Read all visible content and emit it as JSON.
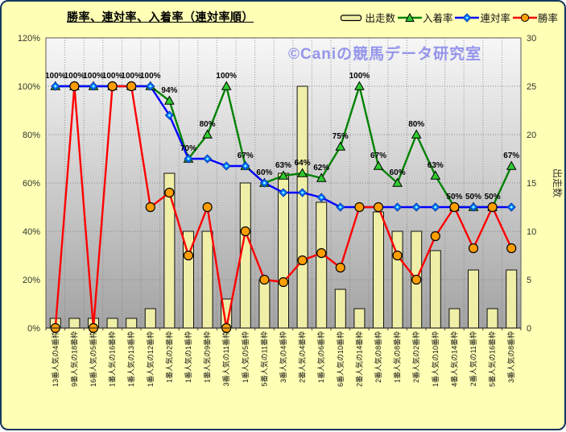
{
  "title": "勝率、連対率、入着率（連対率順）",
  "watermark": "©Caniの競馬データ研究室",
  "legend": [
    {
      "label": "出走数",
      "marker": "bar"
    },
    {
      "label": "入着率",
      "marker": "triangle"
    },
    {
      "label": "連対率",
      "marker": "diamond"
    },
    {
      "label": "勝率",
      "marker": "circle"
    }
  ],
  "colors": {
    "background": "#FFFFB5",
    "frame_border": "#17375E",
    "plot_top": "#F7F7F7",
    "plot_bottom": "#A3A3A3",
    "gridline": "#7F7F7F",
    "bar_fill": "#EFEFA8",
    "bar_stroke": "#111111",
    "place_line": "#008200",
    "place_marker": "#2FCC2F",
    "quinella_line": "#0000FF",
    "quinella_marker": "#0070FF",
    "quinella_marker_dot": "#8FFFFF",
    "win_line": "#FF0000",
    "win_marker": "#FF9E00",
    "label_text": "#000000",
    "axis_text": "#333333",
    "watermark_text": "#9595EC"
  },
  "chart_data": {
    "type": "bar",
    "subtype": "combo-bar-line",
    "title": "勝率、連対率、入着率（連対率順）",
    "grid": true,
    "legend_position": "top-right",
    "categories": [
      "13番人気の4番枠",
      "9番人気の18番枠",
      "16番人気の5番枠",
      "1番人気の16番枠",
      "1番人気の13番枠",
      "1番人気の12番枠",
      "1番人気の2番枠",
      "1番人気の1番枠",
      "1番人気の9番枠",
      "3番人気の11番枠",
      "1番人気の5番枠",
      "5番人気の11番枠",
      "3番人気の4番枠",
      "2番人気の4番枠",
      "1番人気の6番枠",
      "6番人気の10番枠",
      "2番人気の14番枠",
      "2番人気の8番枠",
      "1番人気の8番枠",
      "2番人気の2番枠",
      "1番人気の10番枠",
      "4番人気の14番枠",
      "2番人気の11番枠",
      "5番人気の16番枠",
      "3番人気の8番枠"
    ],
    "series": [
      {
        "name": "出走数",
        "type": "bar",
        "axis": "right",
        "values": [
          1,
          1,
          1,
          1,
          1,
          2,
          16,
          10,
          10,
          3,
          15,
          5,
          16,
          25,
          13,
          4,
          2,
          12,
          10,
          10,
          8,
          2,
          6,
          2,
          6
        ]
      },
      {
        "name": "入着率",
        "type": "line",
        "marker": "triangle",
        "axis": "left",
        "values": [
          100,
          100,
          100,
          100,
          100,
          100,
          94,
          70,
          80,
          100,
          67,
          60,
          63,
          64,
          62,
          75,
          100,
          67,
          60,
          80,
          63,
          50,
          50,
          50,
          67
        ],
        "labels": [
          "100%",
          "100%",
          "100%",
          "100%",
          "100%",
          "100%",
          "94%",
          "70%",
          "80%",
          "100%",
          "67%",
          "60%",
          "63%",
          "64%",
          "62%",
          "75%",
          "100%",
          "67%",
          "60%",
          "80%",
          "63%",
          "50%",
          "50%",
          "50%",
          "67%"
        ]
      },
      {
        "name": "連対率",
        "type": "line",
        "marker": "diamond",
        "axis": "left",
        "values": [
          100,
          100,
          100,
          100,
          100,
          100,
          88,
          70,
          70,
          67,
          67,
          60,
          56,
          56,
          54,
          50,
          50,
          50,
          50,
          50,
          50,
          50,
          50,
          50,
          50
        ]
      },
      {
        "name": "勝率",
        "type": "line",
        "marker": "circle",
        "axis": "left",
        "values": [
          0,
          100,
          0,
          100,
          100,
          50,
          56,
          30,
          50,
          0,
          40,
          20,
          19,
          28,
          31,
          25,
          50,
          50,
          30,
          20,
          38,
          50,
          33,
          50,
          33
        ]
      }
    ],
    "left_axis": {
      "min": 0,
      "max": 120,
      "step": 20,
      "ticks": [
        "0%",
        "20%",
        "40%",
        "60%",
        "80%",
        "100%",
        "120%"
      ]
    },
    "right_axis": {
      "min": 0,
      "max": 30,
      "step": 5,
      "title": "出走数",
      "ticks": [
        "0",
        "5",
        "10",
        "15",
        "20",
        "25",
        "30"
      ]
    }
  }
}
